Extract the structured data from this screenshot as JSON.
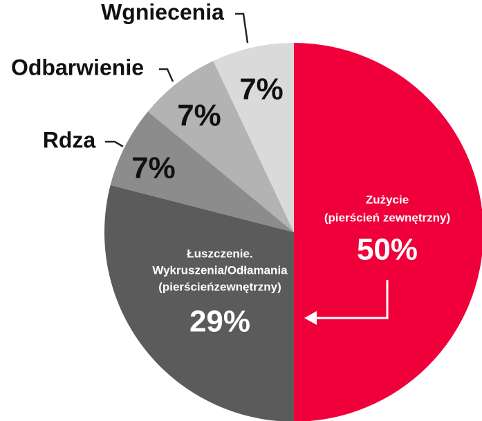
{
  "chart_data": {
    "type": "pie",
    "categories": [
      [
        "Zużycie",
        "(pierścień zewnętrzny)"
      ],
      [
        "Łuszczenie.",
        "Wykruszenia/Odłamania",
        "(pierścieńzewnętrzny)"
      ],
      [
        "Rdza"
      ],
      [
        "Odbarwienie"
      ],
      [
        "Wgniecenia"
      ]
    ],
    "values": [
      50,
      29,
      7,
      7,
      7
    ],
    "value_labels": [
      "50%",
      "29%",
      "7%",
      "7%",
      "7%"
    ],
    "colors": [
      "#f0003a",
      "#5b5b5b",
      "#8c8c8c",
      "#b3b3b3",
      "#dadada"
    ]
  }
}
